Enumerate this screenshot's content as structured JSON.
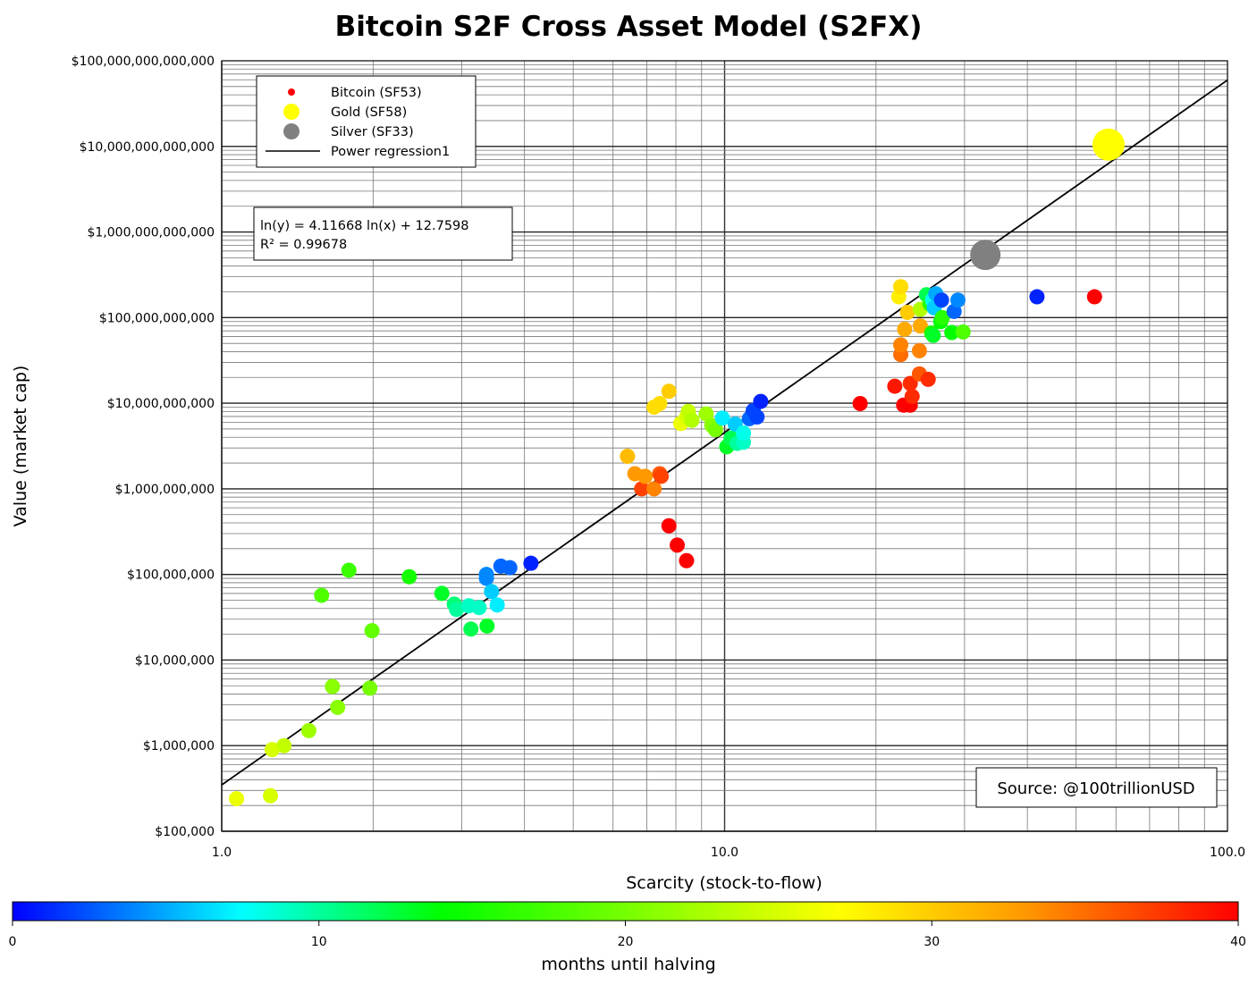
{
  "chart_data": {
    "type": "scatter",
    "title": "Bitcoin S2F Cross Asset Model (S2FX)",
    "xlabel": "Scarcity (stock-to-flow)",
    "ylabel": "Value (market cap)",
    "xscale": "log",
    "yscale": "log",
    "xlim": [
      1,
      100
    ],
    "ylim": [
      100000,
      100000000000000
    ],
    "grid": true,
    "x_ticks": [
      {
        "v": 1,
        "label": "1.0"
      },
      {
        "v": 10,
        "label": "10.0"
      },
      {
        "v": 100,
        "label": "100.0"
      }
    ],
    "y_ticks": [
      {
        "v": 100000,
        "label": "$100,000"
      },
      {
        "v": 1000000,
        "label": "$1,000,000"
      },
      {
        "v": 10000000,
        "label": "$10,000,000"
      },
      {
        "v": 100000000,
        "label": "$100,000,000"
      },
      {
        "v": 1000000000,
        "label": "$1,000,000,000"
      },
      {
        "v": 10000000000,
        "label": "$10,000,000,000"
      },
      {
        "v": 100000000000,
        "label": "$100,000,000,000"
      },
      {
        "v": 1000000000000,
        "label": "$1,000,000,000,000"
      },
      {
        "v": 10000000000000,
        "label": "$10,000,000,000,000"
      },
      {
        "v": 100000000000000,
        "label": "$100,000,000,000,000"
      }
    ],
    "legend": {
      "placement": "top-left",
      "entries": [
        {
          "label": "Bitcoin (SF53)",
          "color": "#ff0000",
          "marker": "dot-small"
        },
        {
          "label": "Gold (SF58)",
          "color": "#ffff00",
          "marker": "dot-large"
        },
        {
          "label": "Silver (SF33)",
          "color": "#808080",
          "marker": "dot-large"
        },
        {
          "label": "Power regression1",
          "color": "#000000",
          "marker": "line"
        }
      ]
    },
    "equation": {
      "line1": "ln(y) = 4.11668 ln(x) + 12.7598",
      "line2": "R² = 0.99678"
    },
    "regression": {
      "a": 4.11668,
      "b": 12.7598
    },
    "source": "Source: @100trillionUSD",
    "series": [
      {
        "name": "Bitcoin",
        "columns": [
          "stock_to_flow",
          "market_cap",
          "months_until_halving"
        ],
        "points": [
          [
            1.07,
            240000,
            26
          ],
          [
            1.25,
            260000,
            25
          ],
          [
            1.26,
            900000,
            25
          ],
          [
            1.33,
            1000000,
            24
          ],
          [
            1.49,
            1500000,
            22
          ],
          [
            1.66,
            4900000,
            21
          ],
          [
            1.7,
            2800000,
            21
          ],
          [
            1.97,
            4700000,
            20
          ],
          [
            1.99,
            22000000,
            19
          ],
          [
            1.58,
            57000000,
            18
          ],
          [
            1.79,
            112000000,
            17
          ],
          [
            2.36,
            94000000,
            15
          ],
          [
            2.74,
            60000000,
            13
          ],
          [
            2.9,
            45000000,
            11
          ],
          [
            2.93,
            39000000,
            10
          ],
          [
            3.1,
            43000000,
            9
          ],
          [
            3.25,
            41000000,
            9
          ],
          [
            3.13,
            23000000,
            12
          ],
          [
            3.37,
            25000000,
            13
          ],
          [
            3.36,
            100000000,
            4
          ],
          [
            3.36,
            90000000,
            4
          ],
          [
            3.44,
            63000000,
            6
          ],
          [
            3.53,
            44000000,
            7
          ],
          [
            3.59,
            125000000,
            3
          ],
          [
            3.74,
            120000000,
            3
          ],
          [
            4.12,
            135000000,
            1
          ],
          [
            6.41,
            2400000000,
            31
          ],
          [
            6.63,
            1500000000,
            33
          ],
          [
            6.84,
            1000000000,
            37
          ],
          [
            6.95,
            1400000000,
            33
          ],
          [
            7.24,
            1000000000,
            34
          ],
          [
            7.43,
            1500000000,
            36
          ],
          [
            7.48,
            1400000000,
            37
          ],
          [
            7.24,
            9000000000,
            29
          ],
          [
            7.43,
            9900000000,
            29
          ],
          [
            7.75,
            13800000000,
            30
          ],
          [
            7.75,
            370000000,
            40
          ],
          [
            8.05,
            220000000,
            40
          ],
          [
            8.4,
            145000000,
            40
          ],
          [
            8.18,
            5800000000,
            26
          ],
          [
            8.4,
            6900000000,
            25
          ],
          [
            8.47,
            8000000000,
            24
          ],
          [
            8.61,
            6300000000,
            23
          ],
          [
            9.19,
            7500000000,
            22
          ],
          [
            9.43,
            5500000000,
            21
          ],
          [
            9.59,
            4900000000,
            20
          ],
          [
            9.9,
            6700000000,
            7
          ],
          [
            10.1,
            3100000000,
            13
          ],
          [
            10.3,
            3900000000,
            12
          ],
          [
            10.6,
            3400000000,
            10
          ],
          [
            10.9,
            3500000000,
            9
          ],
          [
            10.5,
            5700000000,
            6
          ],
          [
            10.9,
            4500000000,
            8
          ],
          [
            11.2,
            6600000000,
            3
          ],
          [
            11.6,
            6900000000,
            2
          ],
          [
            11.4,
            8200000000,
            2
          ],
          [
            11.8,
            10500000000,
            1
          ],
          [
            18.6,
            9900000000,
            40
          ],
          [
            21.8,
            15800000000,
            39
          ],
          [
            22.7,
            9500000000,
            40
          ],
          [
            23.4,
            9500000000,
            40
          ],
          [
            23.4,
            17000000000,
            38
          ],
          [
            23.6,
            12000000000,
            38
          ],
          [
            24.4,
            22000000000,
            36
          ],
          [
            25.4,
            19000000000,
            38
          ],
          [
            22.4,
            37000000000,
            35
          ],
          [
            22.4,
            48000000000,
            34
          ],
          [
            24.4,
            41000000000,
            34
          ],
          [
            22.8,
            73000000000,
            32
          ],
          [
            22.2,
            175000000000,
            28
          ],
          [
            22.4,
            230000000000,
            29
          ],
          [
            23.1,
            115000000000,
            30
          ],
          [
            24.5,
            80000000000,
            32
          ],
          [
            24.5,
            125000000000,
            23
          ],
          [
            25.2,
            185000000000,
            12
          ],
          [
            25.6,
            145000000000,
            16
          ],
          [
            25.9,
            160000000000,
            8
          ],
          [
            26.1,
            130000000000,
            6
          ],
          [
            26.3,
            190000000000,
            5
          ],
          [
            27.0,
            160000000000,
            2
          ],
          [
            25.8,
            66000000000,
            15
          ],
          [
            26.0,
            62000000000,
            13
          ],
          [
            26.9,
            90000000000,
            14
          ],
          [
            27.1,
            100000000000,
            16
          ],
          [
            28.3,
            67000000000,
            14
          ],
          [
            29.8,
            68000000000,
            18
          ],
          [
            28.6,
            118000000000,
            3
          ],
          [
            29.1,
            160000000000,
            4
          ],
          [
            41.8,
            175000000000,
            1
          ],
          [
            54.4,
            175000000000,
            40
          ]
        ]
      },
      {
        "name": "Gold",
        "points": [
          [
            58,
            10500000000000
          ]
        ],
        "color": "#ffff00"
      },
      {
        "name": "Silver",
        "points": [
          [
            33,
            540000000000
          ]
        ],
        "color": "#808080"
      }
    ],
    "colorbar": {
      "label": "months until halving",
      "range": [
        0,
        40
      ],
      "ticks": [
        {
          "v": 0,
          "label": "0"
        },
        {
          "v": 10,
          "label": "10"
        },
        {
          "v": 20,
          "label": "20"
        },
        {
          "v": 30,
          "label": "30"
        },
        {
          "v": 40,
          "label": "40"
        }
      ],
      "stops": [
        [
          0,
          "#0000ff"
        ],
        [
          7.5,
          "#00ffff"
        ],
        [
          14,
          "#00ff00"
        ],
        [
          27,
          "#ffff00"
        ],
        [
          33,
          "#ff9900"
        ],
        [
          40,
          "#ff0000"
        ]
      ]
    }
  }
}
